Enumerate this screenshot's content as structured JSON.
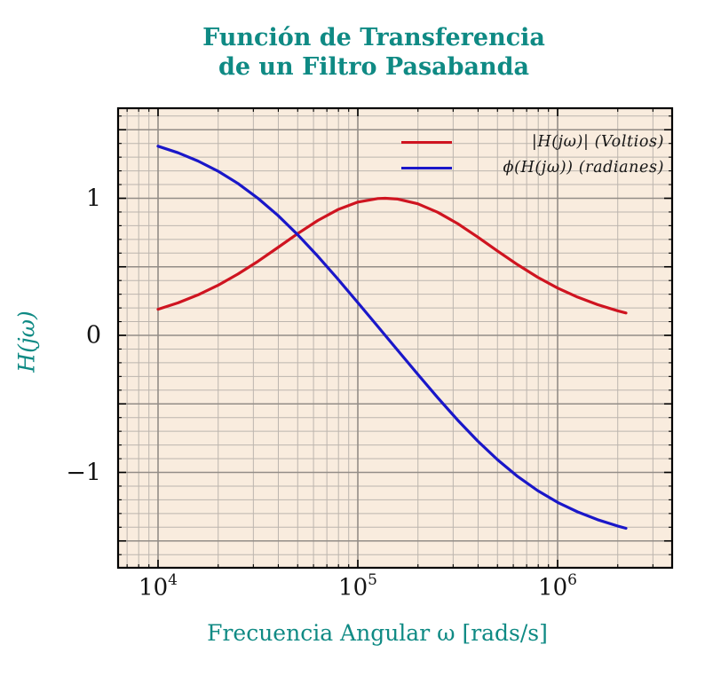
{
  "title": {
    "line1": "Función de Transferencia",
    "line2": "de un Filtro Pasabanda"
  },
  "axes": {
    "x_label": "Frecuencia Angular ω [rads/s]",
    "y_label": "H(jω)",
    "x_scale": "log",
    "x_ticks": [
      {
        "base": "10",
        "exp": "4",
        "value": 10000
      },
      {
        "base": "10",
        "exp": "5",
        "value": 100000
      },
      {
        "base": "10",
        "exp": "6",
        "value": 1000000
      }
    ],
    "y_ticks": [
      {
        "label": "1",
        "value": 1
      },
      {
        "label": "0",
        "value": 0
      },
      {
        "label": "−1",
        "value": -1
      }
    ]
  },
  "legend": [
    {
      "label": "|H(jω)| (Voltios)",
      "color": "#cf1420"
    },
    {
      "label": "ϕ(H(jω)) (radianes)",
      "color": "#1a17c9"
    }
  ],
  "colors": {
    "title_teal": "#0f8a84",
    "plot_background": "#f9ecde",
    "grid_minor": "#bcb5ae",
    "grid_major": "#938d87",
    "spine": "#000000",
    "magnitude_red": "#cf1420",
    "phase_blue": "#1a17c9"
  },
  "chart_data": {
    "type": "line",
    "title": "Función de Transferencia de un Filtro Pasabanda",
    "xlabel": "Frecuencia Angular ω [rads/s]",
    "ylabel": "H(jω)",
    "x_scale": "log",
    "x_range": [
      6310,
      3740000
    ],
    "y_range": [
      -1.7,
      1.66
    ],
    "legend_position": "top right inside, no frame",
    "grid": {
      "x_decades": [
        10000,
        100000,
        1000000
      ],
      "x_minor_mantissas": [
        2,
        3,
        4,
        5,
        6,
        7,
        8,
        9
      ],
      "y_minor_step": 0.1,
      "y_major_step": 0.5
    },
    "x": [
      10000,
      12589,
      15849,
      19953,
      25119,
      31623,
      39811,
      50119,
      63096,
      79433,
      100000,
      125893,
      137000,
      158489,
      199526,
      251189,
      316228,
      398107,
      501187,
      630957,
      794328,
      1000000,
      1258925,
      1584893,
      1995262,
      2200000
    ],
    "series": [
      {
        "name": "|H(jω)| (Voltios)",
        "color": "#cf1420",
        "values": [
          0.19,
          0.237,
          0.295,
          0.365,
          0.447,
          0.54,
          0.641,
          0.743,
          0.838,
          0.917,
          0.972,
          0.998,
          1.0,
          0.994,
          0.96,
          0.898,
          0.815,
          0.717,
          0.614,
          0.515,
          0.424,
          0.345,
          0.279,
          0.224,
          0.179,
          0.163
        ]
      },
      {
        "name": "ϕ(H(jω)) (radianes)",
        "color": "#1a17c9",
        "values": [
          1.38,
          1.332,
          1.272,
          1.198,
          1.108,
          1.0,
          0.875,
          0.733,
          0.577,
          0.411,
          0.239,
          0.065,
          0.0,
          -0.11,
          -0.284,
          -0.455,
          -0.619,
          -0.771,
          -0.909,
          -1.03,
          -1.133,
          -1.219,
          -1.288,
          -1.345,
          -1.391,
          -1.408
        ]
      }
    ]
  }
}
